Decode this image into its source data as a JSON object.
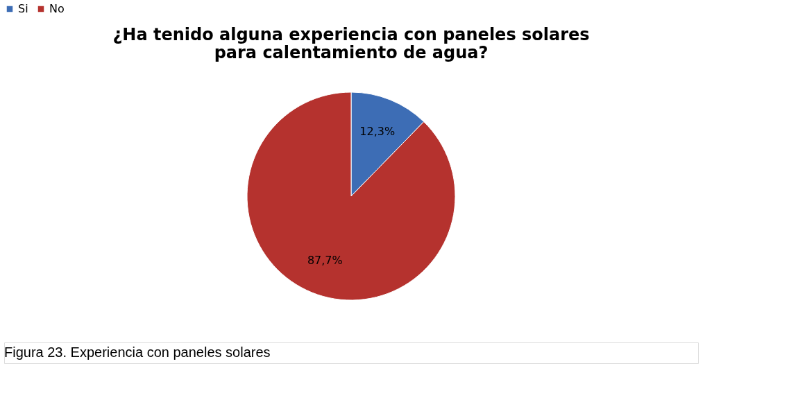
{
  "chart_data": {
    "type": "pie",
    "title": [
      "¿Ha tenido alguna experiencia con paneles solares",
      "para calentamiento de agua?"
    ],
    "categories": [
      "Si",
      "No"
    ],
    "values": [
      12.3,
      87.7
    ],
    "colors": [
      "#3d6db5",
      "#b5322e"
    ],
    "value_labels": [
      "12,3%",
      "87,7%"
    ],
    "legend": "top",
    "annotations": [
      "Figura 23. Experiencia con paneles solares"
    ]
  }
}
